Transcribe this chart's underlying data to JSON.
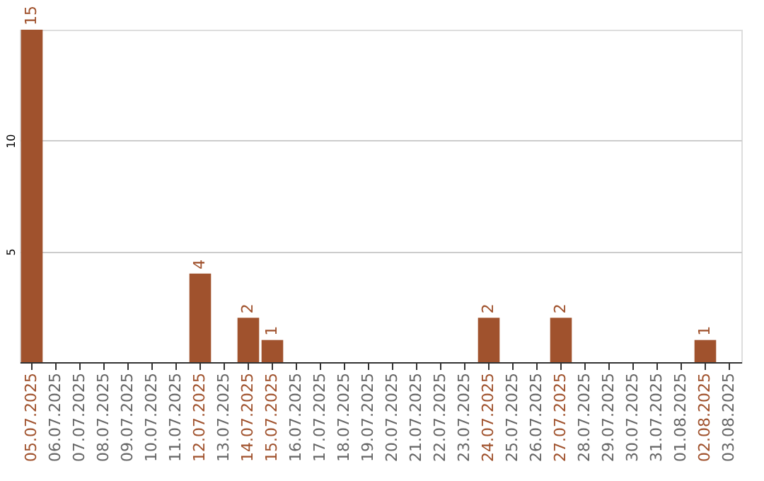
{
  "chart_data": {
    "type": "bar",
    "categories": [
      "05.07.2025",
      "06.07.2025",
      "07.07.2025",
      "08.07.2025",
      "09.07.2025",
      "10.07.2025",
      "11.07.2025",
      "12.07.2025",
      "13.07.2025",
      "14.07.2025",
      "15.07.2025",
      "16.07.2025",
      "17.07.2025",
      "18.07.2025",
      "19.07.2025",
      "20.07.2025",
      "21.07.2025",
      "22.07.2025",
      "23.07.2025",
      "24.07.2025",
      "25.07.2025",
      "26.07.2025",
      "27.07.2025",
      "28.07.2025",
      "29.07.2025",
      "30.07.2025",
      "31.07.2025",
      "01.08.2025",
      "02.08.2025",
      "03.08.2025"
    ],
    "values": [
      15,
      0,
      0,
      0,
      0,
      0,
      0,
      4,
      0,
      2,
      1,
      0,
      0,
      0,
      0,
      0,
      0,
      0,
      0,
      2,
      0,
      0,
      2,
      0,
      0,
      0,
      0,
      0,
      1,
      0
    ],
    "value_labels": [
      "15",
      null,
      null,
      null,
      null,
      null,
      null,
      "4",
      null,
      "2",
      "1",
      null,
      null,
      null,
      null,
      null,
      null,
      null,
      null,
      "2",
      null,
      null,
      "2",
      null,
      null,
      null,
      null,
      null,
      "1",
      null
    ],
    "color": "#a0522d",
    "ylim": [
      0,
      15
    ],
    "yticks": [
      5,
      10
    ],
    "grid": "y"
  }
}
